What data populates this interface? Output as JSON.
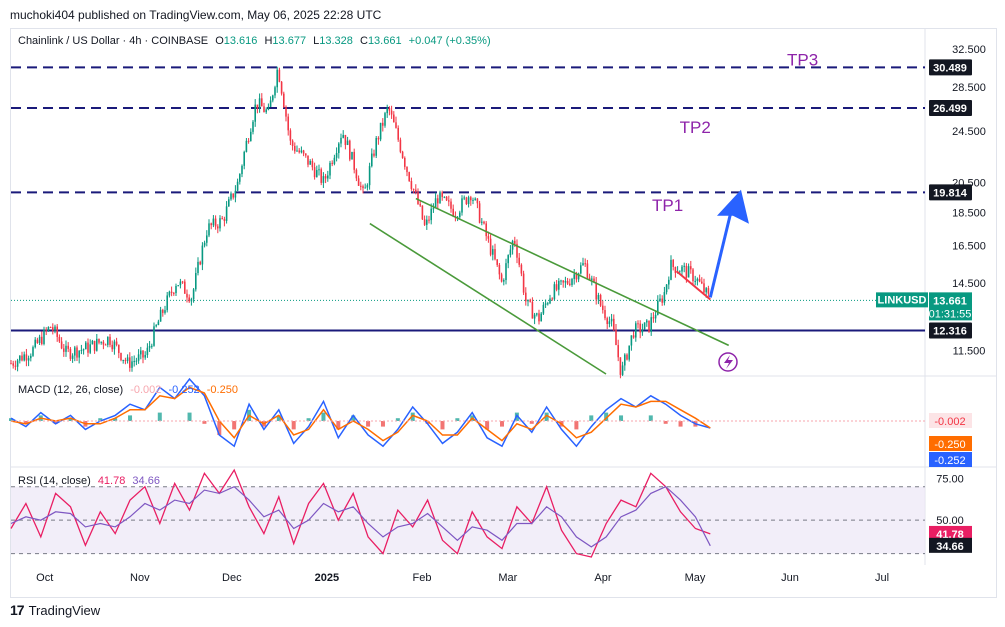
{
  "byline": "muchoki404 published on TradingView.com, May 06, 2025 22:28 UTC",
  "header": {
    "symbol": "Chainlink / US Dollar · 4h · COINBASE",
    "o_label": "O",
    "o": "13.616",
    "h_label": "H",
    "h": "13.677",
    "l_label": "L",
    "l": "13.328",
    "c_label": "C",
    "c": "13.661",
    "change": "+0.047 (+0.35%)"
  },
  "colors": {
    "up": "#089981",
    "down": "#f23645",
    "dashed_level": "#1a1a7a",
    "support": "#1a1a7a",
    "wedge": "#4a9a3a",
    "arrow": "#2962ff",
    "tp_text": "#8e24aa",
    "macd": "#2962ff",
    "signal": "#ff6d00",
    "rsi": "#e91e63",
    "rsi_ma": "#7e57c2"
  },
  "chart_data": {
    "type": "line",
    "title": "Chainlink / US Dollar · 4h · COINBASE",
    "y_scale": "log",
    "ylim": [
      10.6,
      33.5
    ],
    "price_ticks": [
      "32.500",
      "28.500",
      "24.500",
      "20.500",
      "18.500",
      "16.500",
      "14.500",
      "11.500"
    ],
    "time_ticks": [
      "Oct",
      "Nov",
      "Dec",
      "2025",
      "Feb",
      "Mar",
      "Apr",
      "May",
      "Jun",
      "Jul"
    ],
    "series": [
      {
        "name": "LINKUSD",
        "x": [
          "2024-09-20",
          "2024-09-27",
          "2024-10-03",
          "2024-10-08",
          "2024-10-15",
          "2024-10-22",
          "2024-10-28",
          "2024-11-03",
          "2024-11-08",
          "2024-11-13",
          "2024-11-18",
          "2024-11-23",
          "2024-11-28",
          "2024-12-03",
          "2024-12-09",
          "2024-12-13",
          "2024-12-16",
          "2024-12-20",
          "2024-12-26",
          "2024-12-31",
          "2025-01-06",
          "2025-01-13",
          "2025-01-17",
          "2025-01-21",
          "2025-01-27",
          "2025-02-02",
          "2025-02-06",
          "2025-02-12",
          "2025-02-17",
          "2025-02-22",
          "2025-02-27",
          "2025-03-03",
          "2025-03-07",
          "2025-03-11",
          "2025-03-15",
          "2025-03-20",
          "2025-03-26",
          "2025-03-31",
          "2025-04-04",
          "2025-04-07",
          "2025-04-11",
          "2025-04-16",
          "2025-04-21",
          "2025-04-23",
          "2025-04-27",
          "2025-05-01",
          "2025-05-06"
        ],
        "y": [
          11.0,
          11.5,
          12.5,
          11.4,
          11.6,
          12.0,
          11.0,
          11.3,
          13.0,
          14.6,
          13.8,
          17.5,
          18.0,
          20.5,
          27.0,
          26.0,
          30.5,
          23.5,
          22.0,
          20.5,
          24.5,
          19.5,
          23.5,
          26.5,
          21.5,
          17.5,
          19.5,
          18.5,
          19.8,
          17.0,
          14.5,
          17.0,
          13.5,
          12.8,
          14.0,
          14.5,
          15.5,
          13.5,
          12.5,
          10.6,
          12.3,
          12.5,
          14.0,
          15.4,
          15.2,
          14.8,
          13.66
        ]
      }
    ],
    "levels": [
      {
        "label": "TP3",
        "value": 30.489,
        "text": "30.489"
      },
      {
        "label": "TP2",
        "value": 26.499,
        "text": "26.499"
      },
      {
        "label": "TP1",
        "value": 19.814,
        "text": "19.814"
      },
      {
        "value": 12.316,
        "text": "12.316"
      }
    ],
    "current": {
      "symbol": "LINKUSD",
      "value": 13.661,
      "text": "13.661",
      "countdown": "01:31:55"
    },
    "annotations": {
      "wedge_upper": [
        [
          "2025-01-30",
          19.4
        ],
        [
          "2025-05-12",
          11.7
        ]
      ],
      "wedge_lower": [
        [
          "2025-01-15",
          17.8
        ],
        [
          "2025-04-02",
          10.6
        ]
      ],
      "target_arrow": [
        [
          "2025-05-06",
          13.8
        ],
        [
          "2025-05-16",
          20.0
        ]
      ],
      "pullback": [
        [
          "2025-04-25",
          15.1
        ],
        [
          "2025-05-06",
          13.7
        ]
      ]
    },
    "macd": {
      "label": "MACD (12, 26, close)",
      "legend_values": [
        "-0.002",
        "-0.252",
        "-0.250"
      ],
      "scale_values": [
        {
          "text": "-0.002",
          "value": -0.002
        },
        {
          "text": "-0.250",
          "value": -0.25
        },
        {
          "text": "-0.252",
          "value": -0.252
        }
      ],
      "macd_series": [
        0.1,
        -0.2,
        0.3,
        -0.1,
        0.2,
        -0.3,
        0.0,
        0.2,
        0.6,
        0.4,
        1.2,
        0.8,
        1.5,
        0.9,
        -0.5,
        -0.9,
        0.6,
        -0.3,
        0.4,
        -0.8,
        -0.2,
        0.7,
        -0.6,
        0.2,
        -0.5,
        -0.9,
        -0.3,
        0.5,
        -0.1,
        -0.8,
        -0.4,
        0.3,
        -0.6,
        -0.9,
        0.2,
        -0.4,
        0.5,
        -0.3,
        -0.9,
        -0.2,
        0.4,
        0.8,
        0.5,
        0.9,
        0.6,
        0.2,
        -0.1,
        -0.25
      ],
      "signal_series": [
        0.0,
        -0.1,
        0.1,
        0.0,
        0.1,
        -0.1,
        -0.1,
        0.1,
        0.4,
        0.4,
        0.9,
        0.8,
        1.2,
        1.0,
        0.0,
        -0.6,
        0.2,
        -0.1,
        0.2,
        -0.5,
        -0.3,
        0.4,
        -0.3,
        0.0,
        -0.3,
        -0.7,
        -0.4,
        0.2,
        0.0,
        -0.5,
        -0.5,
        0.1,
        -0.3,
        -0.7,
        -0.1,
        -0.3,
        0.2,
        -0.1,
        -0.6,
        -0.4,
        0.1,
        0.6,
        0.5,
        0.7,
        0.7,
        0.4,
        0.1,
        -0.25
      ]
    },
    "rsi": {
      "label": "RSI (14, close)",
      "legend_values": [
        "41.78",
        "34.66"
      ],
      "upper": 70,
      "middle": 50,
      "lower": 30,
      "scale_ticks": [
        "75.00",
        "50.00"
      ],
      "value_tags": [
        {
          "text": "41.78",
          "value": 41.78
        },
        {
          "text": "34.66",
          "value": 34.66
        }
      ],
      "rsi_series": [
        45,
        60,
        40,
        66,
        58,
        35,
        55,
        42,
        62,
        70,
        48,
        72,
        56,
        78,
        66,
        80,
        58,
        42,
        64,
        36,
        60,
        72,
        50,
        66,
        40,
        30,
        56,
        46,
        62,
        38,
        30,
        55,
        40,
        33,
        58,
        48,
        70,
        44,
        30,
        28,
        48,
        62,
        58,
        78,
        70,
        55,
        45,
        41.78
      ],
      "ma_series": [
        48,
        52,
        50,
        55,
        54,
        46,
        48,
        46,
        52,
        60,
        56,
        62,
        60,
        68,
        66,
        70,
        62,
        52,
        56,
        45,
        50,
        60,
        55,
        58,
        48,
        40,
        46,
        48,
        54,
        46,
        38,
        46,
        44,
        38,
        48,
        48,
        58,
        52,
        40,
        34,
        40,
        52,
        56,
        66,
        70,
        62,
        52,
        34.66
      ]
    }
  },
  "footer": {
    "brand": "TradingView"
  }
}
